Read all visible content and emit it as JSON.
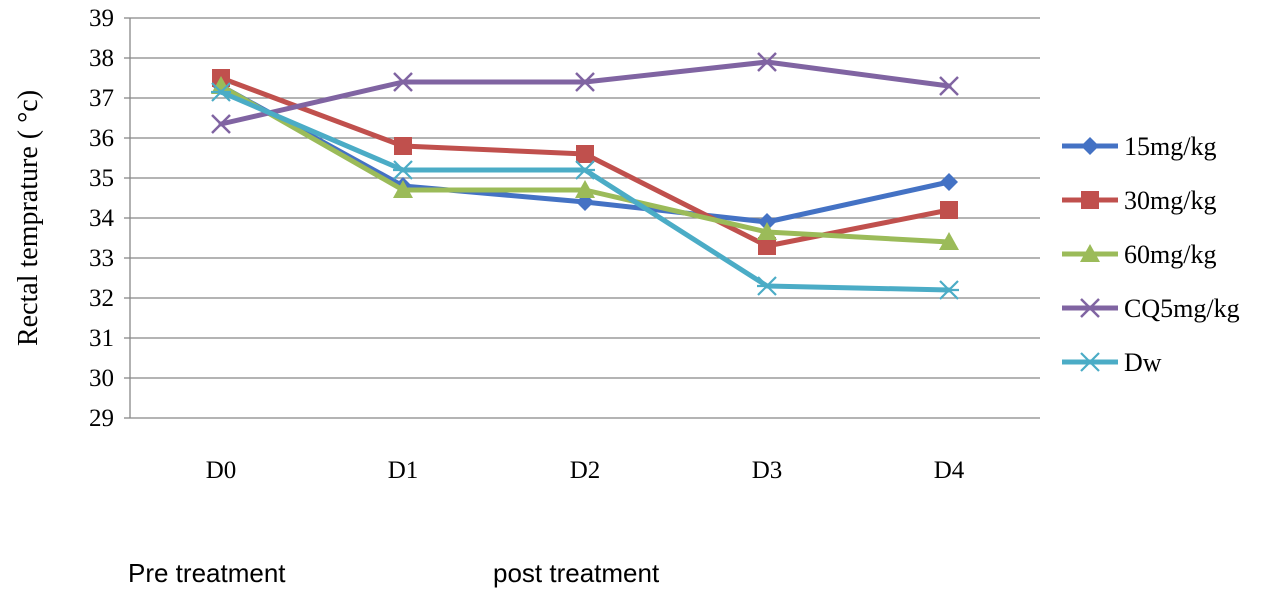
{
  "chart_data": {
    "type": "line",
    "title": "",
    "xlabel": "",
    "ylabel": "Rectal temprature ( °c)",
    "categories": [
      "D0",
      "D1",
      "D2",
      "D3",
      "D4"
    ],
    "ylim": [
      29,
      39
    ],
    "yticks": [
      29,
      30,
      31,
      32,
      33,
      34,
      35,
      36,
      37,
      38,
      39
    ],
    "grid": "horizontal",
    "legend_position": "right",
    "series": [
      {
        "name": "15mg/kg",
        "values": [
          37.3,
          34.8,
          34.4,
          33.9,
          34.9
        ],
        "color": "#4472C4",
        "marker": "diamond"
      },
      {
        "name": "30mg/kg",
        "values": [
          37.5,
          35.8,
          35.6,
          33.3,
          34.2
        ],
        "color": "#C0504D",
        "marker": "square"
      },
      {
        "name": "60mg/kg",
        "values": [
          37.3,
          34.7,
          34.7,
          33.65,
          33.4
        ],
        "color": "#9BBB59",
        "marker": "triangle"
      },
      {
        "name": "CQ5mg/kg",
        "values": [
          36.35,
          37.4,
          37.4,
          37.9,
          37.3
        ],
        "color": "#8064A2",
        "marker": "x"
      },
      {
        "name": "Dw",
        "values": [
          37.15,
          35.2,
          35.2,
          32.3,
          32.2
        ],
        "color": "#4BACC6",
        "marker": "star"
      }
    ]
  },
  "notes": {
    "pre": "Pre treatment",
    "post": "post treatment"
  }
}
